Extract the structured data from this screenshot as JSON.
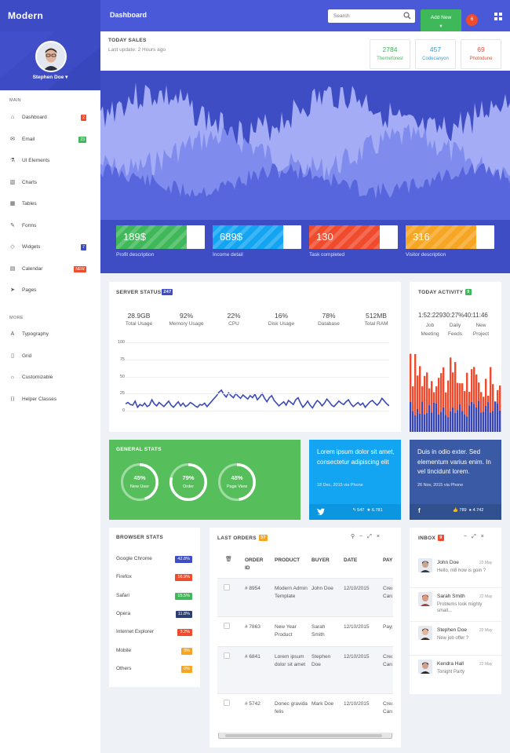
{
  "header": {
    "brand": "Modern",
    "title": "Dashboard",
    "search_placeholder": "Search",
    "add_new": "Add New",
    "notifications": "6"
  },
  "sidebar": {
    "user": "Stephen Doe",
    "main_heading": "MAIN",
    "more_heading": "MORE",
    "main": [
      {
        "label": "Dashboard",
        "icon": "home-icon",
        "badge": "2",
        "badge_color": "#f14b2d"
      },
      {
        "label": "Email",
        "icon": "mail-icon",
        "badge": "23",
        "badge_color": "#3fb85a"
      },
      {
        "label": "UI Elements",
        "icon": "flask-icon",
        "badge": "",
        "badge_color": ""
      },
      {
        "label": "Charts",
        "icon": "bar-chart-icon",
        "badge": "",
        "badge_color": ""
      },
      {
        "label": "Tables",
        "icon": "grid-icon",
        "badge": "",
        "badge_color": ""
      },
      {
        "label": "Forms",
        "icon": "edit-icon",
        "badge": "",
        "badge_color": ""
      },
      {
        "label": "Widgets",
        "icon": "diamond-icon",
        "badge": "7",
        "badge_color": "#3e4dc4"
      },
      {
        "label": "Calendar",
        "icon": "calendar-icon",
        "badge": "NEW",
        "badge_color": "#f14b2d"
      },
      {
        "label": "Pages",
        "icon": "paper-plane-icon",
        "badge": "",
        "badge_color": ""
      }
    ],
    "more": [
      {
        "label": "Typography",
        "icon": "font-icon"
      },
      {
        "label": "Grid",
        "icon": "columns-icon"
      },
      {
        "label": "Customizable",
        "icon": "bulb-icon"
      },
      {
        "label": "Helper Classes",
        "icon": "code-icon"
      }
    ]
  },
  "sales": {
    "title": "TODAY SALES",
    "updated": "Last update: 2 Hours ago",
    "stats": [
      {
        "value": "2784",
        "label": "Themeforest",
        "color": "#3fb85a"
      },
      {
        "value": "457",
        "label": "Codecanyon",
        "color": "#2a9fd8"
      },
      {
        "value": "69",
        "label": "Photodune",
        "color": "#f14b2d"
      }
    ],
    "kpis": [
      {
        "value": "189$",
        "label": "Profit description",
        "color": "#3fb85a"
      },
      {
        "value": "689$",
        "label": "Income detail",
        "color": "#14a5f2"
      },
      {
        "value": "130",
        "label": "Task completed",
        "color": "#f14b2d"
      },
      {
        "value": "316",
        "label": "Visitor description",
        "color": "#f6a623"
      }
    ]
  },
  "server": {
    "title": "SERVER STATUS",
    "badge": "247",
    "metrics": [
      {
        "value": "28.9GB",
        "label": "Total Usage"
      },
      {
        "value": "92%",
        "label": "Memory Usage"
      },
      {
        "value": "22%",
        "label": "CPU"
      },
      {
        "value": "16%",
        "label": "Disk Usage"
      },
      {
        "value": "78%",
        "label": "Database"
      },
      {
        "value": "512MB",
        "label": "Total RAM"
      }
    ],
    "yticks": [
      "100",
      "75",
      "50",
      "25",
      "0"
    ]
  },
  "chart_data": {
    "type": "line",
    "ylim": [
      0,
      100
    ],
    "values": [
      10,
      12,
      9,
      8,
      14,
      5,
      9,
      7,
      11,
      6,
      8,
      16,
      10,
      7,
      12,
      9,
      6,
      10,
      14,
      8,
      5,
      9,
      13,
      7,
      11,
      6,
      8,
      12,
      10,
      7,
      5,
      9,
      8,
      11,
      6,
      10,
      14,
      18,
      22,
      27,
      30,
      24,
      20,
      26,
      22,
      19,
      25,
      21,
      18,
      23,
      20,
      17,
      22,
      19,
      24,
      16,
      20,
      25,
      18,
      13,
      19,
      22,
      15,
      11,
      7,
      10,
      13,
      8,
      15,
      12,
      9,
      16,
      19,
      11,
      5,
      9,
      14,
      8,
      4,
      10,
      15,
      12,
      7,
      11,
      17,
      13,
      8,
      6,
      10,
      14,
      11,
      9,
      13,
      16,
      10,
      6,
      9,
      12,
      8,
      11,
      5,
      9,
      13,
      15,
      11,
      8,
      12,
      18,
      14,
      10,
      7
    ]
  },
  "activity": {
    "title": "TODAY ACTIVITY",
    "badge": "9",
    "items": [
      {
        "value": "1:52:22",
        "label": "Job Meeting"
      },
      {
        "value": "9",
        "label": "Daily Feeds"
      },
      {
        "value": "30:27%",
        "label": ""
      },
      {
        "value": "40:11:46",
        "label": "New Project"
      }
    ]
  },
  "general": {
    "title": "GENERAL STATS",
    "rings": [
      {
        "value": "45%",
        "label": "New User"
      },
      {
        "value": "79%",
        "label": "Order"
      },
      {
        "value": "48%",
        "label": "Page View"
      }
    ]
  },
  "twitter": {
    "text": "Lorem ipsum dolor sit amet, consectetur adipiscing elit",
    "date": "18 Dec, 2015 via Phone",
    "reply": "547",
    "star": "6.781"
  },
  "facebook": {
    "text": "Duis in odio exter. Sed elementum varius enim. In vel tincidunt lorem.",
    "date": "26 Nov, 2015 via Phone",
    "likes": "789",
    "comments": "4.742"
  },
  "browsers": {
    "title": "BROWSER STATS",
    "rows": [
      {
        "name": "Google Chrome",
        "value": "42.8%",
        "color": "#3e4dc4"
      },
      {
        "name": "Firefox",
        "value": "16.9%",
        "color": "#f14b2d"
      },
      {
        "name": "Safari",
        "value": "15.5%",
        "color": "#3fb85a"
      },
      {
        "name": "Opera",
        "value": "11.8%",
        "color": "#2d3e70"
      },
      {
        "name": "Internet Explorer",
        "value": "3.2%",
        "color": "#f14b2d"
      },
      {
        "name": "Mobile",
        "value": "3%",
        "color": "#f6a623"
      },
      {
        "name": "Others",
        "value": "0%",
        "color": "#f6a623"
      }
    ]
  },
  "orders": {
    "title": "LAST ORDERS",
    "badge": "37",
    "columns": [
      "ORDER ID",
      "PRODUCT",
      "BUYER",
      "DATE",
      "PAY"
    ],
    "rows": [
      {
        "id": "# 8954",
        "product": "Modern Admin Template",
        "buyer": "John Doe",
        "date": "12/10/2015",
        "pay": "Cred Card"
      },
      {
        "id": "# 7863",
        "product": "New Year Product",
        "buyer": "Sarah Smith",
        "date": "12/10/2015",
        "pay": "Payp"
      },
      {
        "id": "# 6841",
        "product": "Lorem ipsum dolor sit amet",
        "buyer": "Stephen Doe",
        "date": "12/10/2015",
        "pay": "Cred Card"
      },
      {
        "id": "# 5742",
        "product": "Donec gravida felis",
        "buyer": "Mark Doe",
        "date": "12/10/2015",
        "pay": "Cred Card"
      }
    ]
  },
  "inbox": {
    "title": "INBOX",
    "badge": "9",
    "messages": [
      {
        "name": "John Doe",
        "msg": "Hello, m8 how is goin ?",
        "date": "22 May"
      },
      {
        "name": "Sarah Smith",
        "msg": "Problems look mighty small...",
        "date": "22 May"
      },
      {
        "name": "Stephen Doe",
        "msg": "New job offer ?",
        "date": "22 May"
      },
      {
        "name": "Kendra Hall",
        "msg": "Tonight Party",
        "date": "22 May"
      }
    ]
  }
}
